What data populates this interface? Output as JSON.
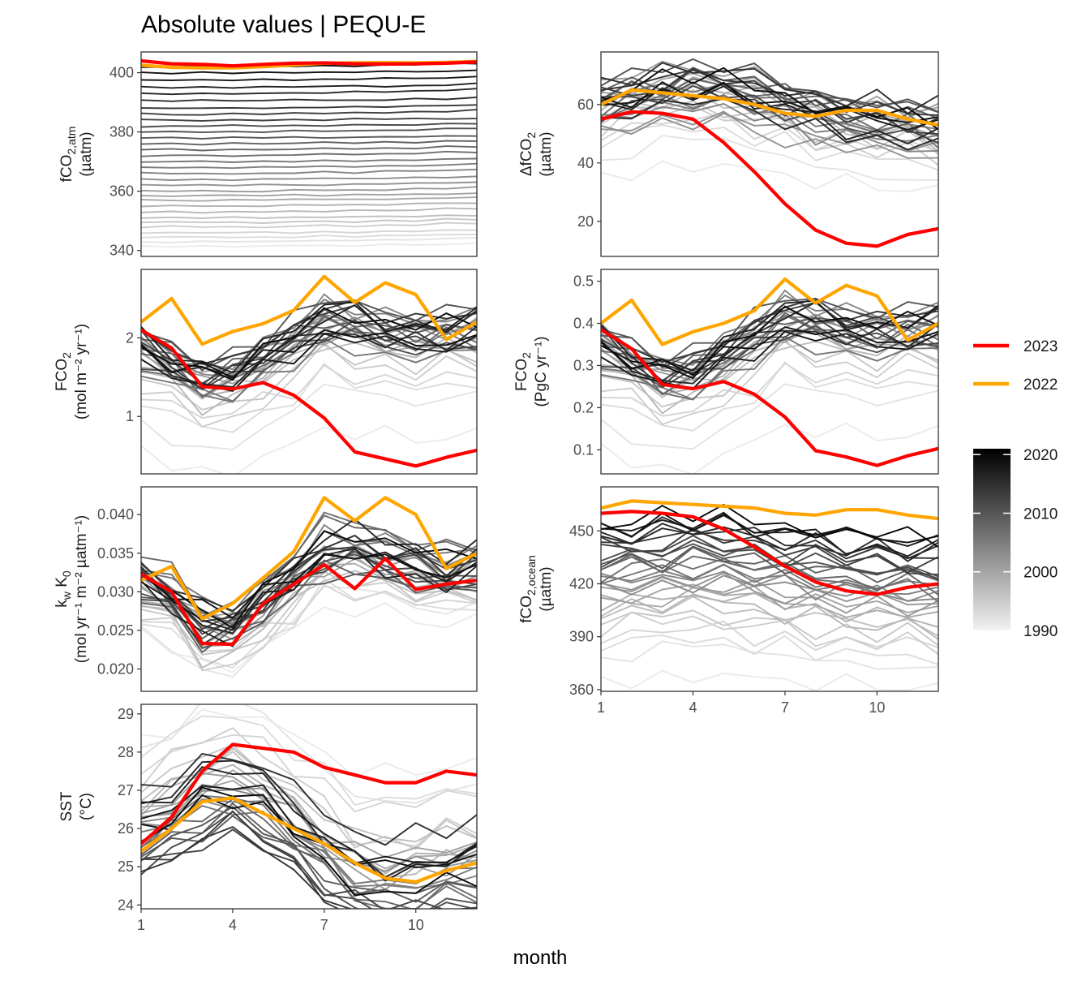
{
  "figure": {
    "title": "Absolute values | PEQU-E",
    "xlabel": "month",
    "legend": {
      "items": [
        {
          "label": "2023",
          "color": "#ff0000"
        },
        {
          "label": "2022",
          "color": "#ffa500"
        }
      ],
      "colorbar_ticks": [
        "2020",
        "2010",
        "2000",
        "1990"
      ],
      "colorbar_range": [
        1990,
        2021
      ]
    }
  },
  "chart_data": [
    {
      "type": "line",
      "id": "fco2atm",
      "ylabel_main": "fCO",
      "ylabel_sub": "2,atm",
      "ylabel_unit": "(µatm)",
      "xlim": [
        1,
        12
      ],
      "ylim": [
        338,
        407
      ],
      "xticks": [
        1,
        4,
        7,
        10
      ],
      "yticks": [
        340,
        360,
        380,
        400
      ],
      "background_years": {
        "start": 1990,
        "end": 2021,
        "curve": [
          0,
          0,
          0,
          0,
          0,
          0.2,
          0.3,
          0.3,
          0.5,
          0.6,
          0.9,
          1.1
        ],
        "levels": [
          341.5,
          343,
          344.5,
          346,
          348,
          349.5,
          351,
          353,
          355,
          357,
          358.5,
          360,
          362,
          364,
          366,
          368,
          370,
          372,
          374,
          376,
          378,
          380,
          382,
          384,
          386,
          388,
          390.5,
          393,
          395,
          397.5,
          400,
          402
        ]
      },
      "series": [
        {
          "name": "2023",
          "color": "#ff0000",
          "values": [
            404.0,
            403.0,
            402.8,
            402.3,
            402.8,
            403.2,
            403.3,
            403.0,
            402.9,
            403.0,
            403.2,
            403.6
          ]
        },
        {
          "name": "2022",
          "color": "#ffa500",
          "values": [
            402.5,
            401.8,
            401.6,
            401.6,
            402.0,
            402.6,
            403.2,
            403.3,
            403.4,
            403.3,
            403.5,
            403.8
          ]
        }
      ]
    },
    {
      "type": "line",
      "id": "dfco2",
      "ylabel_main": "ΔfCO",
      "ylabel_sub": "2",
      "ylabel_unit": "(µatm)",
      "xlim": [
        1,
        12
      ],
      "ylim": [
        8,
        78
      ],
      "xticks": [
        1,
        4,
        7,
        10
      ],
      "yticks": [
        20,
        40,
        60
      ],
      "background_years": {
        "start": 1990,
        "end": 2021,
        "curve": [
          0,
          3,
          5,
          6,
          5,
          3,
          0,
          -3,
          -5,
          -6,
          -7,
          -8
        ],
        "levels": [
          36,
          42,
          47,
          50,
          52,
          54,
          56,
          58,
          60,
          62,
          64,
          66,
          49,
          51,
          53,
          55,
          57,
          59,
          61,
          63,
          65,
          67,
          58,
          60,
          62,
          64,
          66,
          55,
          57,
          59,
          61,
          63
        ]
      },
      "series": [
        {
          "name": "2023",
          "color": "#ff0000",
          "values": [
            55.0,
            57.5,
            57.0,
            55.0,
            47.0,
            37.0,
            26.0,
            17.0,
            12.5,
            11.5,
            15.5,
            17.5
          ]
        },
        {
          "name": "2022",
          "color": "#ffa500",
          "values": [
            60.0,
            65.0,
            64.0,
            63.0,
            62.0,
            60.0,
            57.0,
            56.0,
            58.0,
            58.0,
            55.0,
            53.0
          ]
        }
      ]
    },
    {
      "type": "line",
      "id": "fco2_mol",
      "ylabel_main": "FCO",
      "ylabel_sub": "2",
      "ylabel_unit": "(mol m⁻² yr⁻¹)",
      "xlim": [
        1,
        12
      ],
      "ylim": [
        0.27,
        2.87
      ],
      "xticks": [
        1,
        4,
        7,
        10
      ],
      "yticks": [
        1,
        2
      ],
      "background_years": {
        "start": 1990,
        "end": 2021,
        "curve": [
          0,
          -0.2,
          -0.4,
          -0.35,
          -0.15,
          0.1,
          0.35,
          0.3,
          0.2,
          0.15,
          0.2,
          0.25
        ],
        "levels": [
          0.6,
          1.0,
          1.2,
          1.3,
          1.4,
          1.5,
          1.6,
          1.65,
          1.7,
          1.75,
          1.8,
          1.85,
          1.9,
          1.95,
          2.0,
          2.05,
          1.6,
          1.7,
          1.8,
          1.9,
          2.0,
          2.1,
          1.75,
          1.85,
          1.95,
          2.05,
          1.8,
          1.9,
          2.0,
          1.7,
          1.85,
          1.95
        ]
      },
      "series": [
        {
          "name": "2023",
          "color": "#ff0000",
          "values": [
            2.1,
            1.87,
            1.38,
            1.35,
            1.43,
            1.27,
            0.98,
            0.55,
            0.46,
            0.37,
            0.48,
            0.57
          ]
        },
        {
          "name": "2022",
          "color": "#ffa500",
          "values": [
            2.2,
            2.5,
            1.92,
            2.08,
            2.18,
            2.35,
            2.78,
            2.45,
            2.7,
            2.55,
            1.98,
            2.2
          ]
        }
      ]
    },
    {
      "type": "line",
      "id": "fco2_pgc",
      "ylabel_main": "FCO",
      "ylabel_sub": "2",
      "ylabel_unit": "(PgC yr⁻¹)",
      "xlim": [
        1,
        12
      ],
      "ylim": [
        0.043,
        0.528
      ],
      "xticks": [
        1,
        4,
        7,
        10
      ],
      "yticks": [
        0.1,
        0.2,
        0.3,
        0.4,
        0.5
      ],
      "background_years": {
        "start": 1990,
        "end": 2021,
        "curve": [
          0,
          -0.035,
          -0.075,
          -0.065,
          -0.028,
          0.02,
          0.065,
          0.055,
          0.038,
          0.028,
          0.038,
          0.047
        ],
        "levels": [
          0.11,
          0.18,
          0.22,
          0.24,
          0.26,
          0.28,
          0.295,
          0.305,
          0.315,
          0.325,
          0.335,
          0.345,
          0.355,
          0.365,
          0.375,
          0.385,
          0.295,
          0.315,
          0.335,
          0.355,
          0.375,
          0.39,
          0.325,
          0.345,
          0.365,
          0.38,
          0.335,
          0.355,
          0.37,
          0.315,
          0.345,
          0.36
        ]
      },
      "series": [
        {
          "name": "2023",
          "color": "#ff0000",
          "values": [
            0.385,
            0.34,
            0.255,
            0.245,
            0.262,
            0.232,
            0.178,
            0.098,
            0.083,
            0.063,
            0.086,
            0.103
          ]
        },
        {
          "name": "2022",
          "color": "#ffa500",
          "values": [
            0.4,
            0.455,
            0.35,
            0.38,
            0.4,
            0.43,
            0.505,
            0.448,
            0.49,
            0.465,
            0.36,
            0.4
          ]
        }
      ]
    },
    {
      "type": "line",
      "id": "kwk0",
      "ylabel_main": "k",
      "ylabel_sub": "w",
      "ylabel_main2": " K",
      "ylabel_sub2": "0",
      "ylabel_unit": "(mol yr⁻¹ m⁻² µatm⁻¹)",
      "xlim": [
        1,
        12
      ],
      "ylim": [
        0.0171,
        0.0436
      ],
      "xticks": [
        1,
        4,
        7,
        10
      ],
      "yticks": [
        0.02,
        0.025,
        0.03,
        0.035,
        0.04
      ],
      "background_years": {
        "start": 1990,
        "end": 2021,
        "curve": [
          0,
          -0.002,
          -0.006,
          -0.006,
          -0.003,
          0.0005,
          0.004,
          0.004,
          0.003,
          0.002,
          0.001,
          0.002
        ],
        "levels": [
          0.025,
          0.026,
          0.0265,
          0.027,
          0.0275,
          0.028,
          0.0285,
          0.029,
          0.0295,
          0.03,
          0.0305,
          0.031,
          0.0315,
          0.032,
          0.0325,
          0.033,
          0.0335,
          0.034,
          0.0345,
          0.029,
          0.0295,
          0.03,
          0.0305,
          0.031,
          0.0315,
          0.032,
          0.0325,
          0.033,
          0.03,
          0.031,
          0.032,
          0.033
        ]
      },
      "series": [
        {
          "name": "2023",
          "color": "#ff0000",
          "values": [
            0.0323,
            0.03,
            0.0233,
            0.0232,
            0.0285,
            0.031,
            0.0335,
            0.0304,
            0.0343,
            0.0303,
            0.031,
            0.0315
          ]
        },
        {
          "name": "2022",
          "color": "#ffa500",
          "values": [
            0.0315,
            0.0333,
            0.0265,
            0.0285,
            0.0318,
            0.0352,
            0.0422,
            0.0392,
            0.0422,
            0.04,
            0.033,
            0.035
          ]
        }
      ]
    },
    {
      "type": "line",
      "id": "fco2ocean",
      "ylabel_main": "fCO",
      "ylabel_sub": "2,ocean",
      "ylabel_unit": "(µatm)",
      "xlim": [
        1,
        12
      ],
      "ylim": [
        359,
        475
      ],
      "xticks": [
        1,
        4,
        7,
        10
      ],
      "yticks": [
        360,
        390,
        420,
        450
      ],
      "background_years": {
        "start": 1990,
        "end": 2021,
        "curve": [
          0,
          2,
          4,
          5,
          4,
          2,
          -1,
          -3,
          -5,
          -6,
          -7,
          -8
        ],
        "levels": [
          366,
          380,
          385,
          390,
          395,
          398,
          402,
          405,
          408,
          410,
          412,
          414,
          416,
          418,
          420,
          422,
          424,
          426,
          428,
          430,
          432,
          434,
          436,
          438,
          440,
          442,
          444,
          446,
          448,
          450,
          452,
          454
        ]
      },
      "series": [
        {
          "name": "2023",
          "color": "#ff0000",
          "values": [
            460.0,
            461.0,
            460.0,
            458.0,
            451.0,
            441.0,
            430.0,
            421.0,
            416.0,
            414.0,
            418.0,
            420.0
          ]
        },
        {
          "name": "2022",
          "color": "#ffa500",
          "values": [
            463.0,
            467.0,
            466.0,
            465.0,
            464.0,
            463.0,
            460.0,
            459.0,
            462.0,
            462.0,
            459.0,
            457.0
          ]
        }
      ]
    },
    {
      "type": "line",
      "id": "sst",
      "ylabel_main": "SST",
      "ylabel_sub": "",
      "ylabel_unit": "(°C)",
      "xlim": [
        1,
        12
      ],
      "ylim": [
        23.9,
        29.25
      ],
      "xticks": [
        1,
        4,
        7,
        10
      ],
      "yticks": [
        24,
        25,
        26,
        27,
        28,
        29
      ],
      "background_years": {
        "start": 1990,
        "end": 2021,
        "curve": [
          0,
          0.4,
          0.9,
          1.1,
          0.7,
          0.1,
          -0.6,
          -1.2,
          -1.4,
          -1.3,
          -1.1,
          -1.0
        ],
        "levels": [
          28.4,
          28.2,
          28.0,
          27.6,
          27.3,
          27.0,
          26.8,
          26.6,
          26.5,
          26.4,
          26.3,
          26.2,
          26.1,
          26.0,
          25.9,
          25.8,
          25.7,
          25.6,
          25.5,
          25.4,
          25.3,
          25.2,
          25.1,
          25.0,
          24.9,
          24.8,
          26.9,
          26.6,
          26.4,
          26.2,
          26.0,
          25.8
        ]
      },
      "series": [
        {
          "name": "2023",
          "color": "#ff0000",
          "values": [
            25.6,
            26.3,
            27.5,
            28.2,
            28.1,
            28.0,
            27.6,
            27.4,
            27.2,
            27.2,
            27.5,
            27.4
          ]
        },
        {
          "name": "2022",
          "color": "#ffa500",
          "values": [
            25.4,
            26.0,
            26.7,
            26.8,
            26.4,
            26.0,
            25.6,
            25.1,
            24.7,
            24.6,
            24.9,
            25.1
          ]
        }
      ]
    }
  ]
}
